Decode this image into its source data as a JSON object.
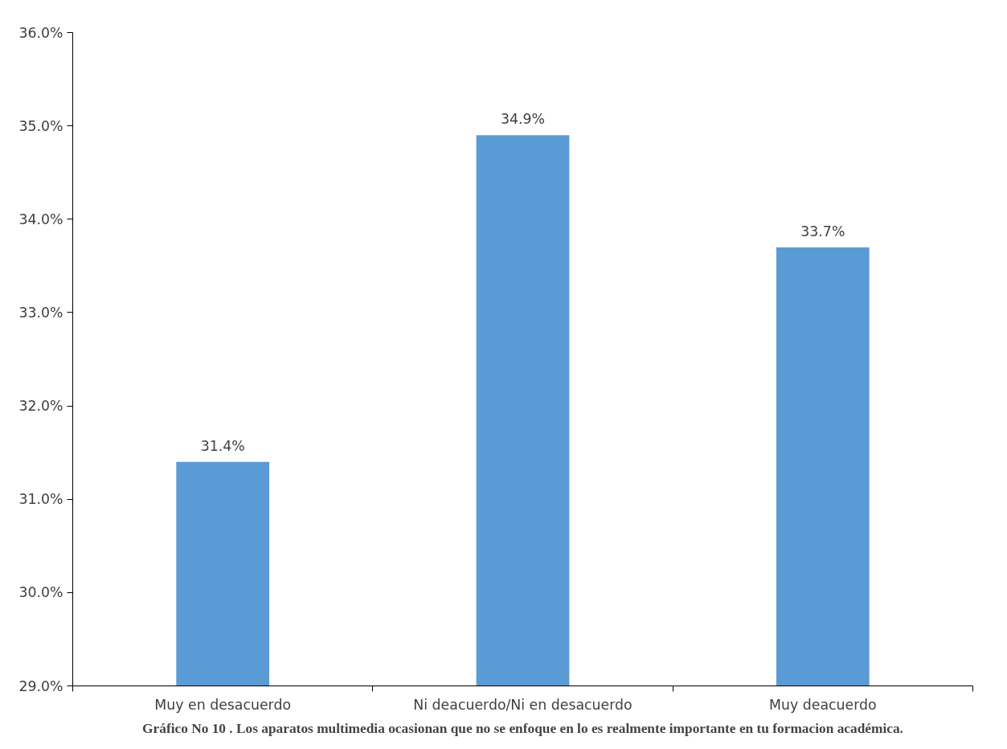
{
  "chart_data": {
    "type": "bar",
    "title": "Gráfico No 10 . Los aparatos multimedia ocasionan que no se enfoque en lo es realmente importante en tu formacion académica.",
    "categories": [
      "Muy en desacuerdo",
      "Ni deacuerdo/Ni en desacuerdo",
      "Muy deacuerdo"
    ],
    "values": [
      31.4,
      34.9,
      33.7
    ],
    "value_labels": [
      "31.4%",
      "34.9%",
      "33.7%"
    ],
    "color": "#5b9bd5",
    "ylim": [
      29,
      36
    ],
    "yticks": [
      {
        "value": 29,
        "label": "29.0%"
      },
      {
        "value": 30,
        "label": "30.0%"
      },
      {
        "value": 31,
        "label": "31.0%"
      },
      {
        "value": 32,
        "label": "32.0%"
      },
      {
        "value": 33,
        "label": "33.0%"
      },
      {
        "value": 34,
        "label": "34.0%"
      },
      {
        "value": 35,
        "label": "35.0%"
      },
      {
        "value": 36,
        "label": "36.0%"
      }
    ],
    "grid": false
  }
}
